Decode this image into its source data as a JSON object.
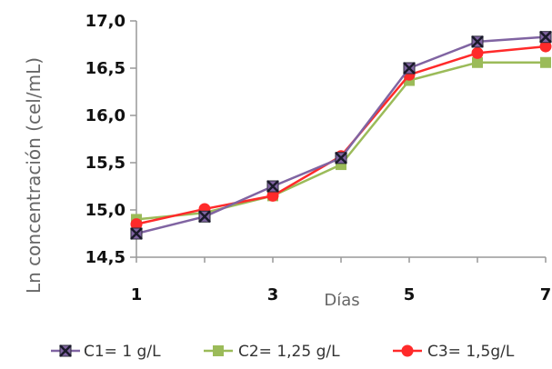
{
  "chart_data": {
    "type": "line",
    "title": "",
    "xlabel": "Días",
    "ylabel": "Ln concentración (cel/mL)",
    "x": [
      1,
      2,
      3,
      4,
      5,
      6,
      7
    ],
    "xticks": [
      1,
      3,
      5,
      7
    ],
    "xtick_labels": [
      "1",
      "3",
      "5",
      "7"
    ],
    "xlim": [
      1,
      7
    ],
    "yticks": [
      14.5,
      15.0,
      15.5,
      16.0,
      16.5,
      17.0
    ],
    "ytick_labels": [
      "14,5",
      "15,0",
      "15,5",
      "16,0",
      "16,5",
      "17,0"
    ],
    "ylim": [
      14.5,
      17.0
    ],
    "grid": false,
    "legend_position": "bottom",
    "series": [
      {
        "name": "C1= 1 g/L",
        "values": [
          14.75,
          14.93,
          15.25,
          15.55,
          16.5,
          16.78,
          16.83
        ],
        "color": "#8064a2",
        "marker": "x-box"
      },
      {
        "name": "C2= 1,25 g/L",
        "values": [
          14.9,
          14.97,
          15.15,
          15.48,
          16.37,
          16.56,
          16.56
        ],
        "color": "#9bbb59",
        "marker": "square"
      },
      {
        "name": "C3= 1,5g/L",
        "values": [
          14.85,
          15.01,
          15.15,
          15.57,
          16.43,
          16.66,
          16.73
        ],
        "color": "#ff2a2a",
        "marker": "circle"
      }
    ]
  }
}
